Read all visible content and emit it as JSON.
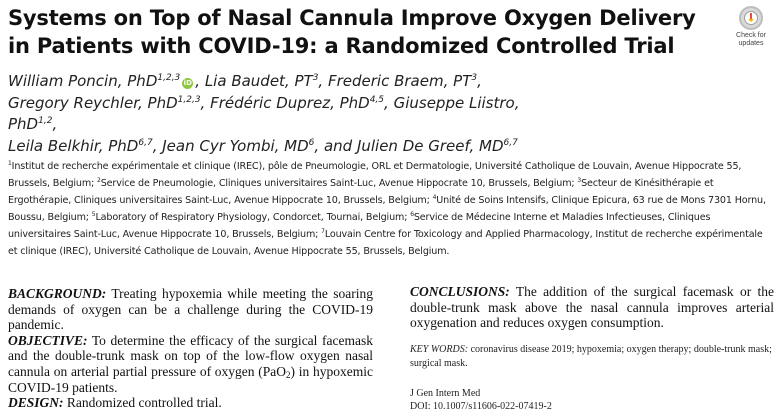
{
  "title": {
    "line1": "Systems on Top of Nasal Cannula Improve Oxygen Delivery",
    "line2": "in Patients with COVID-19: a Randomized Controlled Trial"
  },
  "badge": {
    "icon": "check-for-updates-icon",
    "line1": "Check for",
    "line2": "updates",
    "color": "#d9d9d9"
  },
  "authors": [
    {
      "name": "William Poncin, PhD",
      "sup": "1,2,3",
      "orcid": "iD",
      "sep": ", "
    },
    {
      "name": "Lia Baudet, PT",
      "sup": "3",
      "sep": ", "
    },
    {
      "name": "Frederic Braem, PT",
      "sup": "3",
      "sep": ","
    },
    {
      "name": "Gregory Reychler, PhD",
      "sup": "1,2,3",
      "sep": ", "
    },
    {
      "name": "Frédéric Duprez, PhD",
      "sup": "4,5",
      "sep": ", "
    },
    {
      "name": "Giuseppe Liistro, PhD",
      "sup": "1,2",
      "sep": ","
    },
    {
      "name": "Leila Belkhir, PhD",
      "sup": "6,7",
      "sep": ", "
    },
    {
      "name": "Jean Cyr Yombi, MD",
      "sup": "6",
      "sep": ", and "
    },
    {
      "name": "Julien De Greef, MD",
      "sup": "6,7",
      "sep": ""
    }
  ],
  "affiliations": [
    {
      "sup": "1",
      "text": "Institut de recherche expérimentale et clinique (IREC), pôle de Pneumologie, ORL et Dermatologie, Université Catholique de Louvain, Avenue Hippocrate 55, Brussels, Belgium; "
    },
    {
      "sup": "2",
      "text": "Service de Pneumologie, Cliniques universitaires Saint-Luc, Avenue Hippocrate 10, Brussels, Belgium; "
    },
    {
      "sup": "3",
      "text": "Secteur de Kinésithérapie et Ergothérapie, Cliniques universitaires Saint-Luc, Avenue Hippocrate 10, Brussels, Belgium; "
    },
    {
      "sup": "4",
      "text": "Unité de Soins Intensifs, Clinique Epicura, 63 rue de Mons 7301 Hornu, Boussu, Belgium; "
    },
    {
      "sup": "5",
      "text": "Laboratory of Respiratory Physiology, Condorcet, Tournai, Belgium; "
    },
    {
      "sup": "6",
      "text": "Service de Médecine Interne et Maladies Infectieuses, Cliniques universitaires Saint-Luc, Avenue Hippocrate 10, Brussels, Belgium; "
    },
    {
      "sup": "7",
      "text": "Louvain Centre for Toxicology and Applied Pharmacology, Institut de recherche expérimentale et clinique (IREC), Université Catholique de Louvain, Avenue Hippocrate 55, Brussels, Belgium."
    }
  ],
  "abstract": {
    "background_head": "BACKGROUND:",
    "background_text": " Treating hypoxemia while meeting the soaring demands of oxygen can be a challenge during the COVID-19 pandemic.",
    "objective_head": "OBJECTIVE:",
    "objective_text_a": " To determine the efficacy of the surgical facemask and the double-trunk mask on top of the low-flow oxygen nasal cannula on arterial partial pressure of oxygen (PaO",
    "objective_sub": "2",
    "objective_text_b": ") in hypoxemic COVID-19 patients.",
    "design_head": "DESIGN:",
    "design_text": " Randomized controlled trial.",
    "conclusions_head": "CONCLUSIONS:",
    "conclusions_text": " The addition of the surgical facemask or the double-trunk mask above the nasal cannula improves arterial oxygenation and reduces oxygen consumption."
  },
  "keywords": {
    "head": "KEY WORDS:",
    "text": " coronavirus disease 2019; hypoxemia; oxygen therapy; double-trunk mask; surgical mask."
  },
  "journal": {
    "name": "J Gen Intern Med",
    "doi": "DOI: 10.1007/s11606-022-07419-2"
  }
}
